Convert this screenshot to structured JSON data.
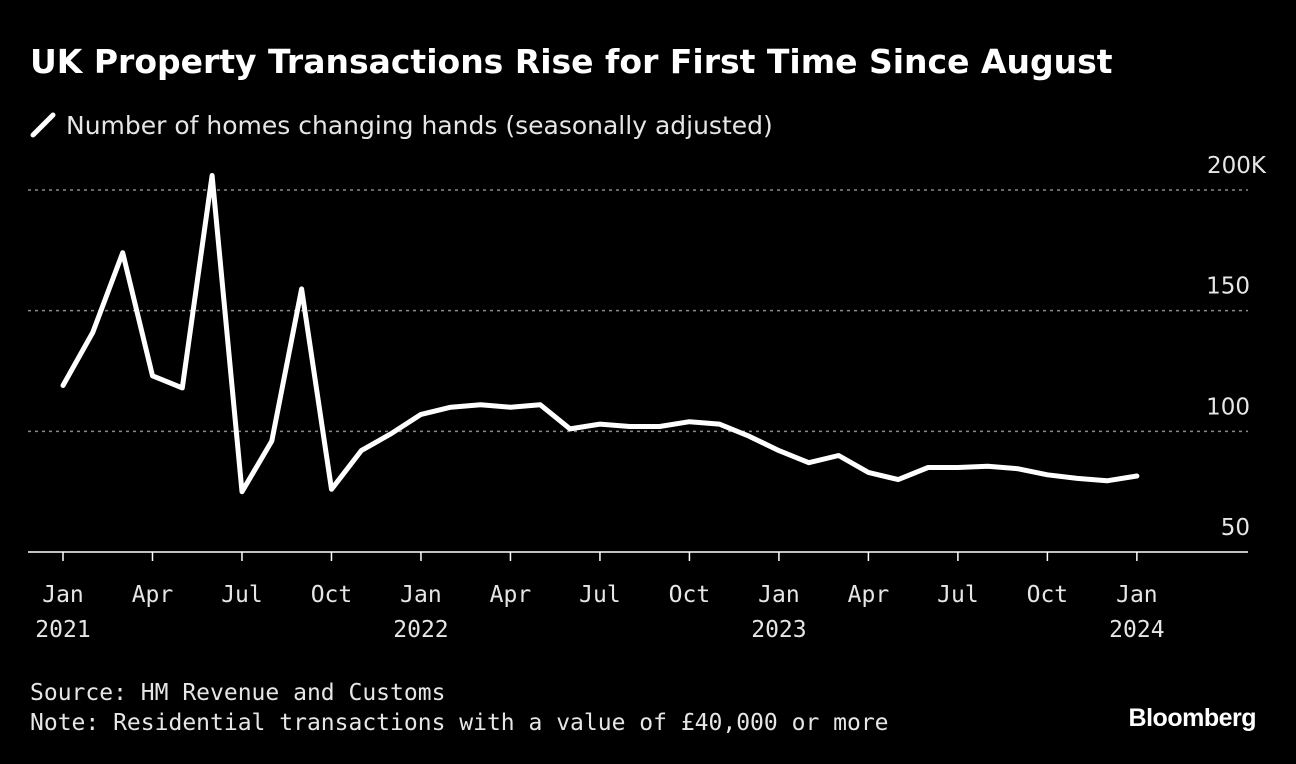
{
  "chart_data": {
    "type": "line",
    "title": "UK Property Transactions Rise for First Time Since August",
    "legend": "Number of homes changing hands (seasonally adjusted)",
    "xlabel": "",
    "ylabel": "",
    "ylim": [
      50,
      200
    ],
    "y_ticks": [
      {
        "value": 200,
        "label": "200K"
      },
      {
        "value": 150,
        "label": "150"
      },
      {
        "value": 100,
        "label": "100"
      },
      {
        "value": 50,
        "label": "50"
      }
    ],
    "x_ticks": [
      {
        "index": 0,
        "month": "Jan",
        "year": "2021"
      },
      {
        "index": 3,
        "month": "Apr",
        "year": ""
      },
      {
        "index": 6,
        "month": "Jul",
        "year": ""
      },
      {
        "index": 9,
        "month": "Oct",
        "year": ""
      },
      {
        "index": 12,
        "month": "Jan",
        "year": "2022"
      },
      {
        "index": 15,
        "month": "Apr",
        "year": ""
      },
      {
        "index": 18,
        "month": "Jul",
        "year": ""
      },
      {
        "index": 21,
        "month": "Oct",
        "year": ""
      },
      {
        "index": 24,
        "month": "Jan",
        "year": "2023"
      },
      {
        "index": 27,
        "month": "Apr",
        "year": ""
      },
      {
        "index": 30,
        "month": "Jul",
        "year": ""
      },
      {
        "index": 33,
        "month": "Oct",
        "year": ""
      },
      {
        "index": 36,
        "month": "Jan",
        "year": "2024"
      }
    ],
    "series": [
      {
        "name": "Number of homes changing hands (seasonally adjusted)",
        "color": "#ffffff",
        "x": [
          "2021-01",
          "2021-02",
          "2021-03",
          "2021-04",
          "2021-05",
          "2021-06",
          "2021-07",
          "2021-08",
          "2021-09",
          "2021-10",
          "2021-11",
          "2021-12",
          "2022-01",
          "2022-02",
          "2022-03",
          "2022-04",
          "2022-05",
          "2022-06",
          "2022-07",
          "2022-08",
          "2022-09",
          "2022-10",
          "2022-11",
          "2022-12",
          "2023-01",
          "2023-02",
          "2023-03",
          "2023-04",
          "2023-05",
          "2023-06",
          "2023-07",
          "2023-08",
          "2023-09",
          "2023-10",
          "2023-11",
          "2023-12",
          "2024-01"
        ],
        "values": [
          119,
          141,
          174,
          123,
          118,
          206,
          75,
          96,
          159,
          76,
          92,
          99,
          107,
          110,
          111,
          110,
          111,
          101,
          103,
          102,
          102,
          104,
          103,
          98,
          92,
          87,
          90,
          83,
          80,
          85,
          85,
          85.5,
          84.5,
          82,
          80.5,
          79.5,
          81.5
        ]
      }
    ]
  },
  "source": "Source: HM Revenue and Customs",
  "note": "Note: Residential transactions with a value of £40,000 or more",
  "brand": "Bloomberg"
}
